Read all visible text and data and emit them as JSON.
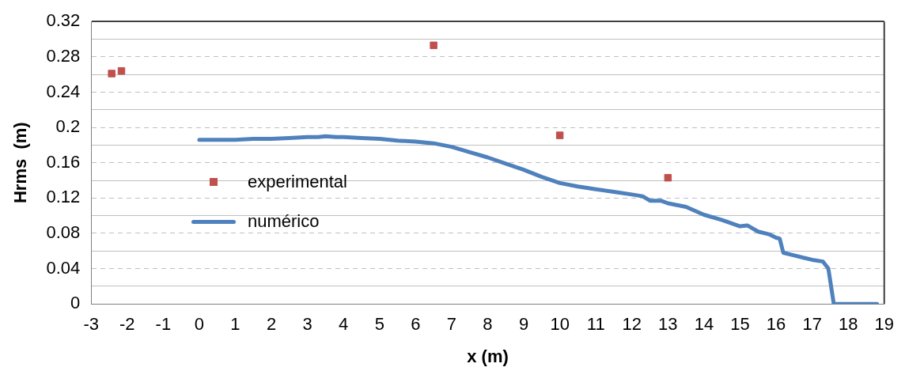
{
  "chart_data": {
    "type": "scatter",
    "xlabel": "x (m)",
    "ylabel": "Hrms  (m)",
    "xlim": [
      -3,
      19
    ],
    "xticks": [
      -3,
      -2,
      -1,
      0,
      1,
      2,
      3,
      4,
      5,
      6,
      7,
      8,
      9,
      10,
      11,
      12,
      13,
      14,
      15,
      16,
      17,
      18,
      19
    ],
    "ylim": [
      0,
      0.32
    ],
    "yticks": [
      0,
      {
        "value": 0.02,
        "label": null
      },
      0.04,
      {
        "value": 0.06,
        "label": null
      },
      0.08,
      {
        "value": 0.1,
        "label": null
      },
      0.12,
      {
        "value": 0.14,
        "label": null
      },
      0.16,
      {
        "value": 0.18,
        "label": null
      },
      0.2,
      {
        "value": 0.22,
        "label": null
      },
      0.24,
      {
        "value": 0.26,
        "label": null
      },
      0.28,
      {
        "value": 0.3,
        "label": null
      },
      0.32
    ],
    "grid": "y",
    "legend": "left",
    "series": [
      {
        "name": "experimental",
        "type": "scatter",
        "marker": "square",
        "color": "#c0504d",
        "x": [
          -2.43,
          -2.16,
          6.5,
          10,
          13
        ],
        "values": [
          0.261,
          0.264,
          0.293,
          0.191,
          0.143
        ]
      },
      {
        "name": "numérico",
        "type": "line",
        "marker": "none",
        "color": "#4f81bd",
        "x": [
          0,
          0.5,
          1,
          1.5,
          2,
          2.5,
          3,
          3.3,
          3.5,
          3.8,
          4,
          4.5,
          5,
          5.5,
          6,
          6.5,
          7,
          7.5,
          8,
          8.5,
          9,
          9.5,
          10,
          10.5,
          11,
          11.5,
          12,
          12.3,
          12.5,
          12.8,
          13,
          13.5,
          14,
          14.5,
          15,
          15.2,
          15.5,
          15.8,
          16,
          16.1,
          16.2,
          16.5,
          17,
          17.3,
          17.45,
          17.6,
          18.8
        ],
        "values": [
          0.186,
          0.186,
          0.186,
          0.187,
          0.187,
          0.188,
          0.189,
          0.189,
          0.19,
          0.189,
          0.189,
          0.188,
          0.187,
          0.185,
          0.184,
          0.182,
          0.178,
          0.172,
          0.166,
          0.159,
          0.152,
          0.144,
          0.137,
          0.133,
          0.13,
          0.127,
          0.124,
          0.122,
          0.117,
          0.117,
          0.114,
          0.11,
          0.101,
          0.095,
          0.088,
          0.089,
          0.082,
          0.079,
          0.075,
          0.074,
          0.058,
          0.055,
          0.05,
          0.048,
          0.04,
          0,
          0
        ]
      }
    ]
  }
}
